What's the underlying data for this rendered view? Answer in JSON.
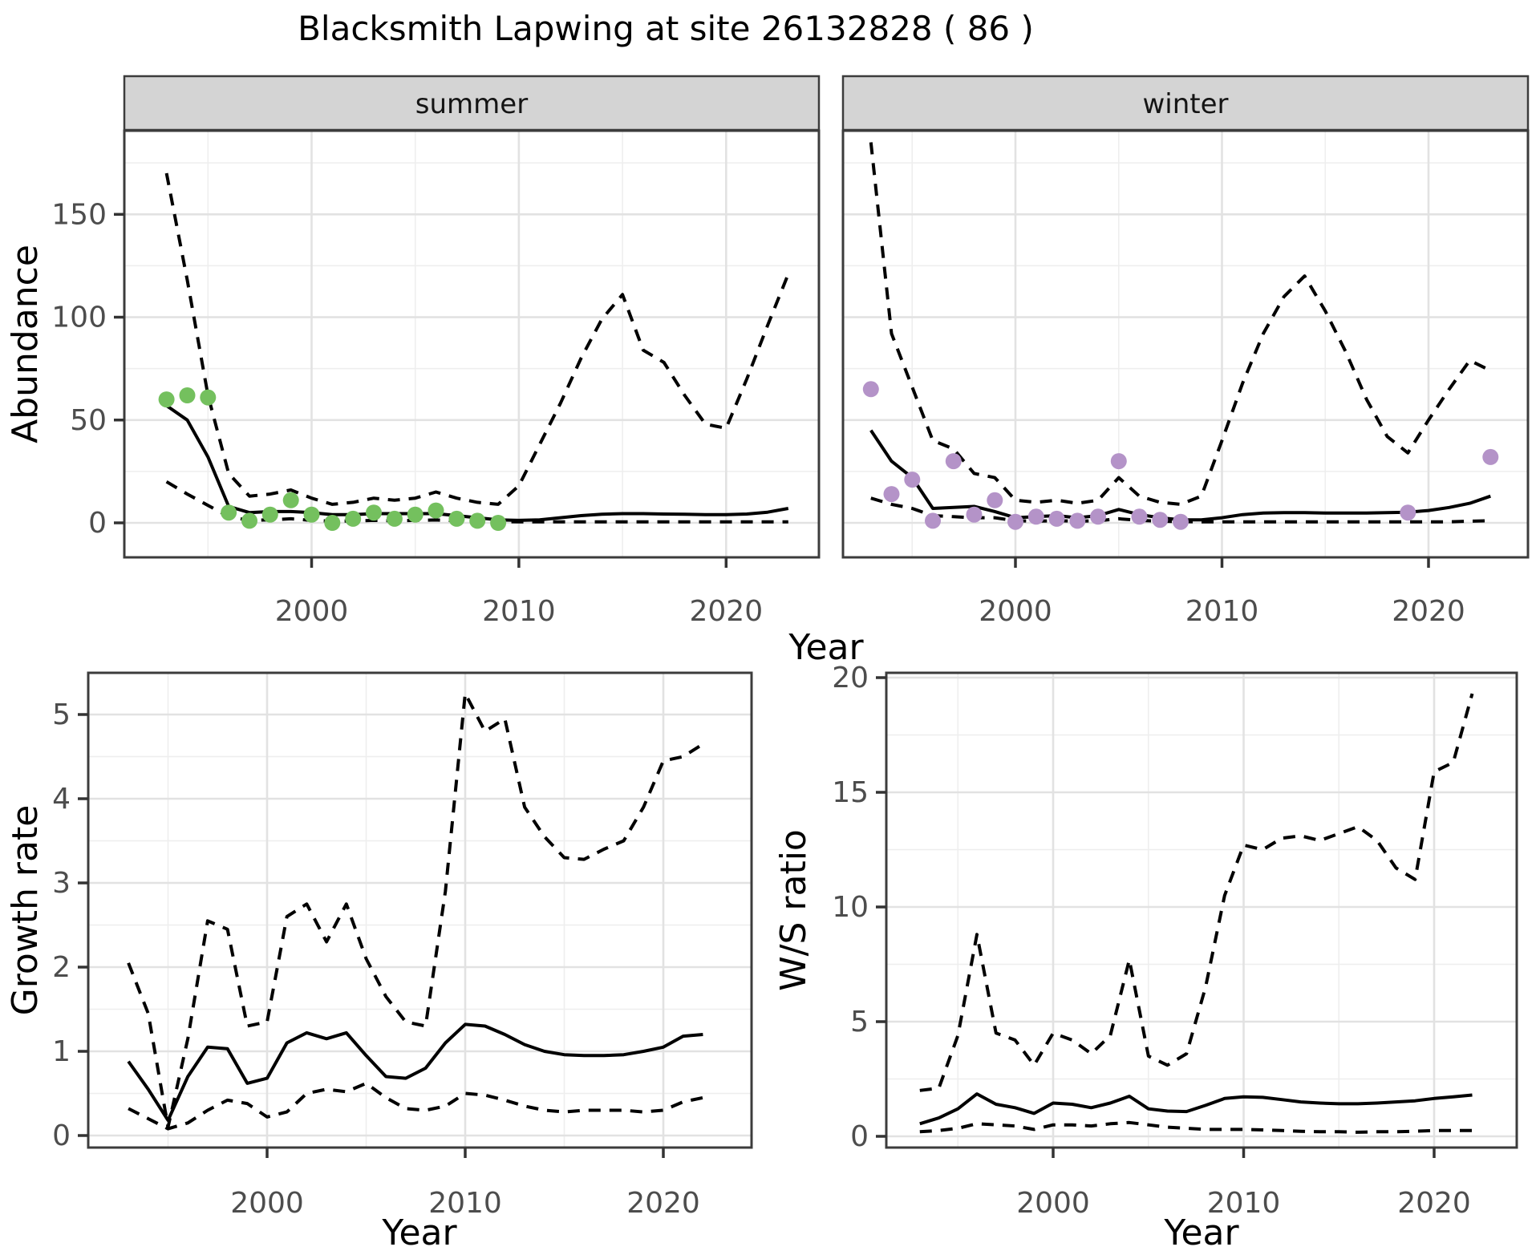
{
  "title": "Blacksmith Lapwing at site 26132828 ( 86 )",
  "colors": {
    "summer_points": "#74c05e",
    "winter_points": "#b493c8",
    "fit_line": "#000000",
    "ci_line": "#000000",
    "grid_major": "#e2e2e2",
    "grid_minor": "#eeeeee",
    "strip_fill": "#d4d4d4",
    "panel_border": "#3c3c3c",
    "tick_text": "#4d4d4d"
  },
  "chart_data": [
    {
      "type": "line",
      "panel": "abundance-summer",
      "title": "summer",
      "xlabel": "Year",
      "ylabel": "Abundance",
      "xlim": [
        1991,
        2024.5
      ],
      "ylim": [
        -17,
        191
      ],
      "xticks": [
        2000,
        2010,
        2020
      ],
      "yticks": [
        0,
        50,
        100,
        150
      ],
      "yminor": [
        25,
        75,
        125,
        175
      ],
      "xminor": [
        1995,
        2005,
        2015
      ],
      "grid": true,
      "legend": "none",
      "years": [
        1993,
        1994,
        1995,
        1996,
        1997,
        1998,
        1999,
        2000,
        2001,
        2002,
        2003,
        2004,
        2005,
        2006,
        2007,
        2008,
        2009,
        2010,
        2011,
        2012,
        2013,
        2014,
        2015,
        2016,
        2017,
        2018,
        2019,
        2020,
        2021,
        2022,
        2023
      ],
      "series": [
        {
          "name": "fit",
          "style": "solid",
          "values": [
            57,
            50,
            32,
            8,
            5,
            5.5,
            5.5,
            5,
            4,
            4,
            4.5,
            4.5,
            4.5,
            4.5,
            3.5,
            2.5,
            1.5,
            1.2,
            1.5,
            2.5,
            3.5,
            4.2,
            4.5,
            4.5,
            4.3,
            4.2,
            4,
            4,
            4.3,
            5.2,
            7
          ]
        },
        {
          "name": "upper_ci",
          "style": "dashed",
          "values": [
            170,
            118,
            62,
            24,
            13,
            14,
            16,
            12,
            9,
            10,
            12,
            11,
            12,
            15,
            12,
            10,
            9,
            18,
            38,
            58,
            80,
            99,
            111,
            84,
            78,
            62,
            48,
            46,
            70,
            96,
            121
          ]
        },
        {
          "name": "lower_ci",
          "style": "dashed",
          "values": [
            20,
            14,
            8.5,
            3,
            1.2,
            1.5,
            2,
            1.2,
            0.8,
            0.9,
            1.2,
            1,
            1.2,
            1.4,
            1,
            0.8,
            0.6,
            0.5,
            0.5,
            0.5,
            0.5,
            0.5,
            0.5,
            0.5,
            0.5,
            0.5,
            0.5,
            0.5,
            0.5,
            0.5,
            0.5
          ]
        }
      ],
      "points": {
        "name": "observed",
        "x": [
          1993,
          1994,
          1995,
          1996,
          1997,
          1998,
          1999,
          2000,
          2001,
          2002,
          2003,
          2004,
          2005,
          2006,
          2007,
          2008,
          2009
        ],
        "y": [
          60,
          62,
          61,
          5,
          1,
          4,
          11,
          4,
          0,
          2,
          5,
          2,
          4,
          6,
          2,
          1,
          0
        ]
      }
    },
    {
      "type": "line",
      "panel": "abundance-winter",
      "title": "winter",
      "xlabel": "Year",
      "ylabel": "Abundance",
      "xlim": [
        1991.5,
        2024.8
      ],
      "ylim": [
        -17,
        191
      ],
      "xticks": [
        2000,
        2010,
        2020
      ],
      "yticks": [
        0,
        50,
        100,
        150
      ],
      "yminor": [
        25,
        75,
        125,
        175
      ],
      "xminor": [
        1995,
        2005,
        2015
      ],
      "grid": true,
      "legend": "none",
      "years": [
        1993,
        1994,
        1995,
        1996,
        1997,
        1998,
        1999,
        2000,
        2001,
        2002,
        2003,
        2004,
        2005,
        2006,
        2007,
        2008,
        2009,
        2010,
        2011,
        2012,
        2013,
        2014,
        2015,
        2016,
        2017,
        2018,
        2019,
        2020,
        2021,
        2022,
        2023
      ],
      "series": [
        {
          "name": "fit",
          "style": "solid",
          "values": [
            45,
            30,
            22,
            7,
            7.5,
            8,
            5.5,
            2.5,
            3,
            3.5,
            2.5,
            3.5,
            6.5,
            4,
            2.5,
            1.5,
            1.5,
            2.5,
            4,
            4.8,
            5,
            5,
            4.8,
            4.8,
            4.8,
            5,
            5.2,
            6,
            7.5,
            9.5,
            13
          ]
        },
        {
          "name": "upper_ci",
          "style": "dashed",
          "values": [
            185,
            92,
            66,
            40,
            36,
            24,
            22,
            11,
            10,
            11,
            9.5,
            11,
            22,
            13,
            10,
            9,
            13,
            40,
            68,
            92,
            110,
            120,
            103,
            83,
            60,
            42,
            34,
            50,
            65,
            79,
            74
          ]
        },
        {
          "name": "lower_ci",
          "style": "dashed",
          "values": [
            12,
            9,
            7,
            3.5,
            3,
            2.5,
            2.5,
            1,
            0.8,
            1,
            0.8,
            1,
            2,
            1.2,
            0.8,
            0.6,
            0.5,
            0.5,
            0.5,
            0.5,
            0.5,
            0.5,
            0.5,
            0.5,
            0.5,
            0.5,
            0.5,
            0.5,
            0.5,
            0.8,
            1
          ]
        }
      ],
      "points": {
        "name": "observed",
        "x": [
          1993,
          1994,
          1995,
          1996,
          1997,
          1998,
          1999,
          2000,
          2001,
          2002,
          2003,
          2004,
          2005,
          2006,
          2007,
          2008,
          2019,
          2023
        ],
        "y": [
          65,
          14,
          21,
          1,
          30,
          4,
          11,
          0.5,
          3,
          2,
          1,
          3,
          30,
          3,
          1.5,
          0.5,
          5,
          32
        ]
      }
    },
    {
      "type": "line",
      "panel": "growth-rate",
      "title": "",
      "xlabel": "Year",
      "ylabel": "Growth rate",
      "xlim": [
        1991,
        2024.4
      ],
      "ylim": [
        -0.15,
        5.5
      ],
      "xticks": [
        2000,
        2010,
        2020
      ],
      "yticks": [
        0,
        1,
        2,
        3,
        4,
        5
      ],
      "yminor": [
        0.5,
        1.5,
        2.5,
        3.5,
        4.5
      ],
      "xminor": [
        1995,
        2005,
        2015
      ],
      "grid": true,
      "legend": "none",
      "years": [
        1993,
        1994,
        1995,
        1996,
        1997,
        1998,
        1999,
        2000,
        2001,
        2002,
        2003,
        2004,
        2005,
        2006,
        2007,
        2008,
        2009,
        2010,
        2011,
        2012,
        2013,
        2014,
        2015,
        2016,
        2017,
        2018,
        2019,
        2020,
        2021,
        2022
      ],
      "series": [
        {
          "name": "fit",
          "style": "solid",
          "values": [
            0.88,
            0.55,
            0.18,
            0.7,
            1.05,
            1.03,
            0.62,
            0.68,
            1.1,
            1.22,
            1.15,
            1.22,
            0.95,
            0.7,
            0.68,
            0.8,
            1.1,
            1.32,
            1.3,
            1.2,
            1.08,
            1.0,
            0.96,
            0.95,
            0.95,
            0.96,
            1.0,
            1.05,
            1.18,
            1.2
          ]
        },
        {
          "name": "upper_ci",
          "style": "dashed",
          "values": [
            2.05,
            1.45,
            0.1,
            1.15,
            2.55,
            2.45,
            1.3,
            1.35,
            2.6,
            2.75,
            2.3,
            2.75,
            2.1,
            1.65,
            1.35,
            1.3,
            2.9,
            5.25,
            4.8,
            4.95,
            3.9,
            3.55,
            3.3,
            3.28,
            3.4,
            3.5,
            3.9,
            4.45,
            4.5,
            4.65
          ]
        },
        {
          "name": "lower_ci",
          "style": "dashed",
          "values": [
            0.32,
            0.2,
            0.08,
            0.15,
            0.3,
            0.42,
            0.38,
            0.22,
            0.28,
            0.5,
            0.55,
            0.52,
            0.62,
            0.45,
            0.32,
            0.3,
            0.35,
            0.5,
            0.48,
            0.42,
            0.35,
            0.3,
            0.28,
            0.3,
            0.3,
            0.3,
            0.28,
            0.3,
            0.4,
            0.45
          ]
        }
      ],
      "points": null
    },
    {
      "type": "line",
      "panel": "ws-ratio",
      "title": "",
      "xlabel": "Year",
      "ylabel": "W/S ratio",
      "xlim": [
        1991.4,
        2024.3
      ],
      "ylim": [
        -0.6,
        20.3
      ],
      "xticks": [
        2000,
        2010,
        2020
      ],
      "yticks": [
        0,
        5,
        10,
        15,
        20
      ],
      "yminor": [
        2.5,
        7.5,
        12.5,
        17.5
      ],
      "xminor": [
        1995,
        2005,
        2015
      ],
      "grid": true,
      "legend": "none",
      "years": [
        1993,
        1994,
        1995,
        1996,
        1997,
        1998,
        1999,
        2000,
        2001,
        2002,
        2003,
        2004,
        2005,
        2006,
        2007,
        2008,
        2009,
        2010,
        2011,
        2012,
        2013,
        2014,
        2015,
        2016,
        2017,
        2018,
        2019,
        2020,
        2021,
        2022
      ],
      "series": [
        {
          "name": "fit",
          "style": "solid",
          "values": [
            0.55,
            0.8,
            1.2,
            1.85,
            1.4,
            1.25,
            1.0,
            1.45,
            1.4,
            1.25,
            1.45,
            1.75,
            1.2,
            1.1,
            1.08,
            1.35,
            1.65,
            1.72,
            1.7,
            1.6,
            1.5,
            1.45,
            1.42,
            1.42,
            1.45,
            1.5,
            1.55,
            1.65,
            1.72,
            1.8
          ]
        },
        {
          "name": "upper_ci",
          "style": "dashed",
          "values": [
            2.0,
            2.1,
            4.4,
            8.8,
            4.5,
            4.2,
            3.1,
            4.5,
            4.2,
            3.6,
            4.4,
            7.7,
            3.5,
            3.1,
            3.6,
            6.5,
            10.5,
            12.7,
            12.5,
            13.0,
            13.1,
            12.9,
            13.2,
            13.5,
            12.9,
            11.7,
            11.2,
            15.9,
            16.3,
            19.3
          ]
        },
        {
          "name": "lower_ci",
          "style": "dashed",
          "values": [
            0.2,
            0.25,
            0.35,
            0.55,
            0.5,
            0.45,
            0.3,
            0.5,
            0.5,
            0.45,
            0.55,
            0.6,
            0.5,
            0.4,
            0.35,
            0.3,
            0.3,
            0.3,
            0.28,
            0.25,
            0.22,
            0.2,
            0.2,
            0.18,
            0.2,
            0.2,
            0.22,
            0.25,
            0.25,
            0.25
          ]
        }
      ],
      "points": null
    }
  ]
}
